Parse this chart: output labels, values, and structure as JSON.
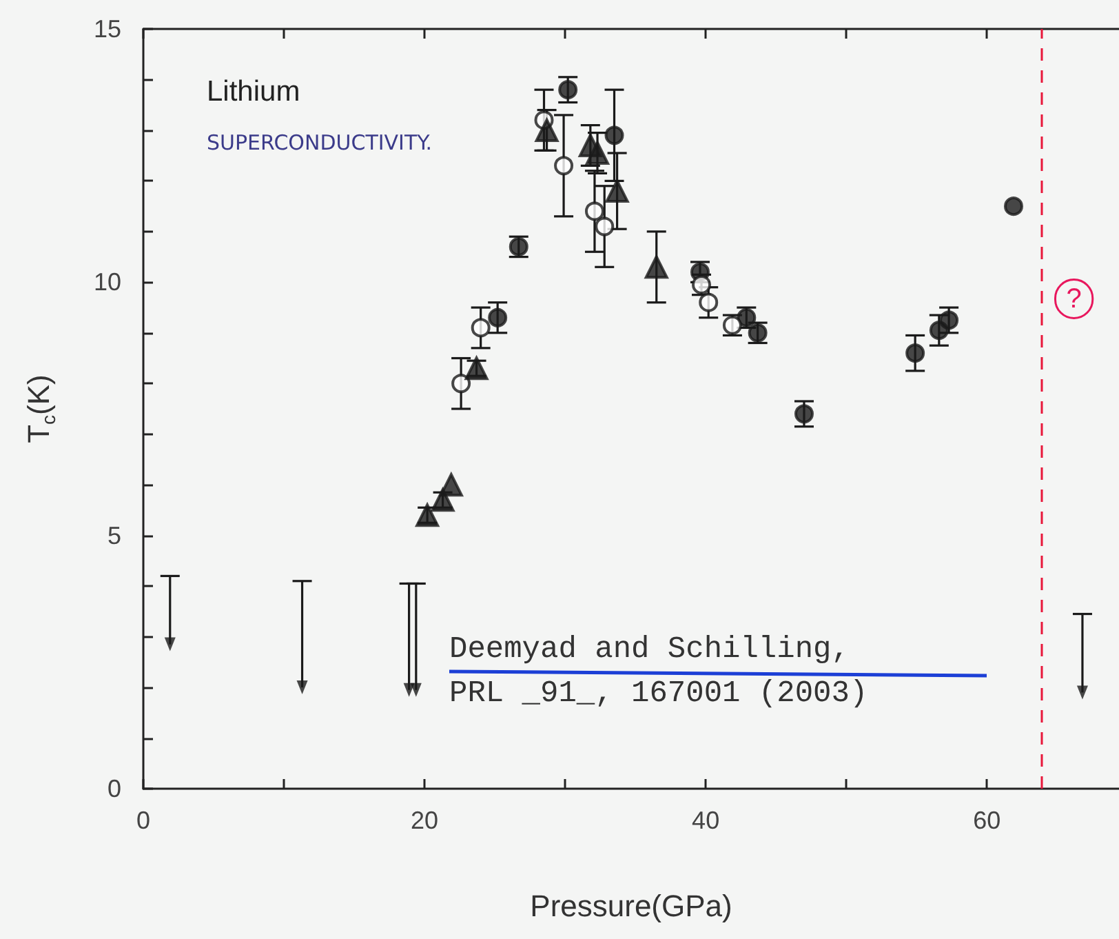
{
  "chart_data": {
    "type": "scatter",
    "xlabel": "Pressure(GPa)",
    "ylabel": "T$_{c}$(K)",
    "xlim": [
      0,
      69.4
    ],
    "ylim": [
      0,
      15
    ],
    "xticks": [
      0,
      {
        "value": 10,
        "label": null
      },
      20,
      {
        "value": 30,
        "label": null
      },
      40,
      {
        "value": 50,
        "label": null
      },
      60
    ],
    "yticks": [
      0,
      {
        "value": 1,
        "label": null
      },
      {
        "value": 2,
        "label": null
      },
      {
        "value": 3,
        "label": null
      },
      {
        "value": 4,
        "label": null
      },
      5,
      {
        "value": 6,
        "label": null
      },
      {
        "value": 7,
        "label": null
      },
      {
        "value": 8,
        "label": null
      },
      {
        "value": 9,
        "label": null
      },
      10,
      {
        "value": 11,
        "label": null
      },
      {
        "value": 12,
        "label": null
      },
      {
        "value": 13,
        "label": null
      },
      {
        "value": 14,
        "label": null
      },
      15
    ],
    "series": [
      {
        "color": "#1a1a1a",
        "marker": "circle",
        "x": [
          26.7,
          30.2,
          33.5,
          25.2,
          39.6,
          42.9,
          43.7,
          47.0,
          54.9,
          56.6,
          57.3,
          61.9
        ],
        "values": [
          10.7,
          13.8,
          12.9,
          9.3,
          10.2,
          9.3,
          9.0,
          7.4,
          8.6,
          9.05,
          9.25,
          11.5
        ],
        "errors": [
          0.2,
          0.25,
          0.9,
          0.3,
          0.2,
          0.2,
          0.2,
          0.25,
          0.35,
          0.3,
          0.25,
          null
        ]
      },
      {
        "color": "#ffffff",
        "marker": "circle",
        "x": [
          22.6,
          24.0,
          28.5,
          29.9,
          32.1,
          32.8,
          39.7,
          40.2,
          41.9
        ],
        "values": [
          8.0,
          9.1,
          13.2,
          12.3,
          11.4,
          11.1,
          9.95,
          9.6,
          9.15
        ],
        "errors": [
          0.5,
          0.4,
          0.6,
          1.0,
          0.8,
          0.8,
          0.2,
          0.3,
          0.2
        ]
      },
      {
        "color": "#1a1a1a",
        "marker": "triangle",
        "x": [
          20.2,
          21.3,
          21.9,
          23.7,
          28.7,
          31.8,
          32.3,
          33.7,
          36.5
        ],
        "values": [
          5.4,
          5.7,
          6.0,
          8.3,
          13.0,
          12.7,
          12.55,
          11.8,
          10.3
        ],
        "errors": [
          0.15,
          0.15,
          null,
          0.15,
          0.4,
          0.4,
          0.4,
          0.75,
          0.7
        ]
      },
      {
        "color": "#1a1a1a",
        "marker": "triangle",
        "x": [
          1.9,
          11.3,
          18.9,
          19.4,
          66.8
        ],
        "values": [
          2.85,
          2.0,
          1.95,
          1.95,
          1.9
        ],
        "errors": [
          [
            2.85,
            4.2
          ],
          [
            2.0,
            4.1
          ],
          [
            1.95,
            4.05
          ],
          [
            1.95,
            4.05
          ],
          [
            1.9,
            3.45
          ]
        ]
      }
    ],
    "ref_lines": [
      {
        "axis": "x",
        "value": 63.9,
        "color": "#e8173a",
        "line_style": "dashed"
      }
    ],
    "annotations": [
      "Lithium",
      "SUPERCONDUCTIVITY.",
      "Deemyad and Schilling,",
      "PRL _91_, 167001 (2003)",
      "?"
    ]
  }
}
